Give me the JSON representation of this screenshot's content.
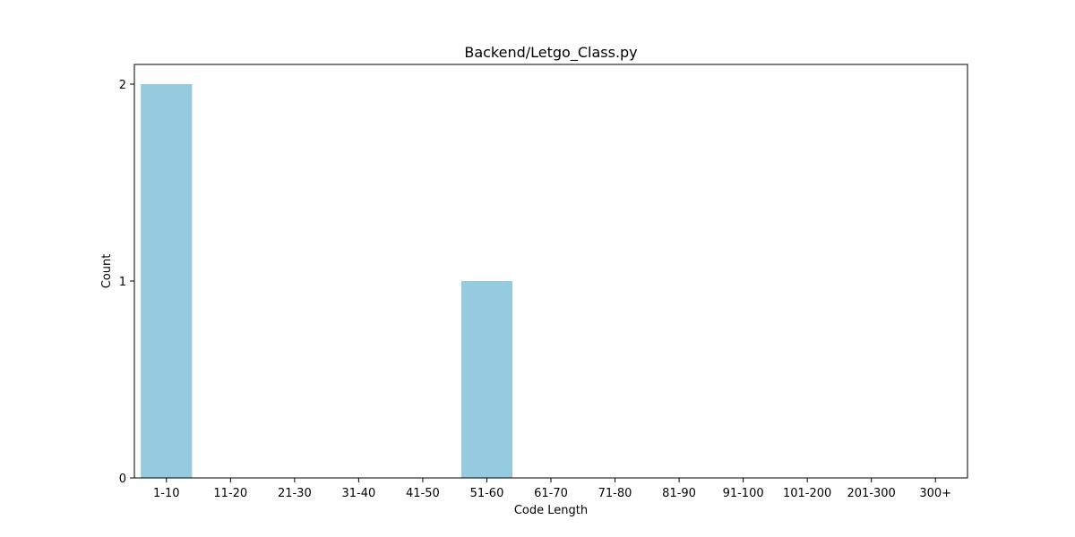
{
  "chart_data": {
    "type": "bar",
    "title": "Backend/Letgo_Class.py",
    "xlabel": "Code Length",
    "ylabel": "Count",
    "categories": [
      "1-10",
      "11-20",
      "21-30",
      "31-40",
      "41-50",
      "51-60",
      "61-70",
      "71-80",
      "81-90",
      "91-100",
      "101-200",
      "201-300",
      "300+"
    ],
    "values": [
      2,
      0,
      0,
      0,
      0,
      1,
      0,
      0,
      0,
      0,
      0,
      0,
      0
    ],
    "ylim": [
      0,
      2.1
    ],
    "yticks": [
      0,
      1,
      2
    ],
    "bar_color": "#96cadf",
    "grid": false,
    "legend": null
  }
}
